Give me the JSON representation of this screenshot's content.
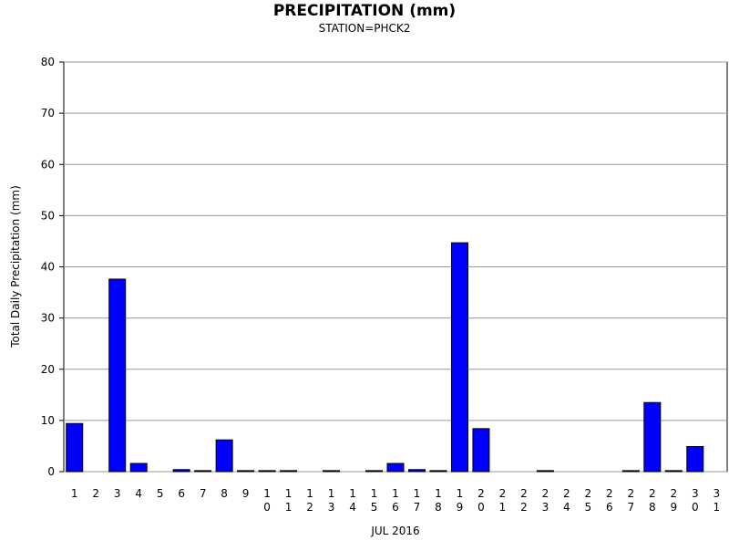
{
  "chart_data": {
    "type": "bar",
    "title": "PRECIPITATION (mm)",
    "subtitle": "STATION=PHCK2",
    "x_label": "JUL 2016",
    "y_label": "Total Daily Precipitation (mm)",
    "categories": [
      "1",
      "2",
      "3",
      "4",
      "5",
      "6",
      "7",
      "8",
      "9",
      "10",
      "11",
      "12",
      "13",
      "14",
      "15",
      "16",
      "17",
      "18",
      "19",
      "20",
      "21",
      "22",
      "23",
      "24",
      "25",
      "26",
      "27",
      "28",
      "29",
      "30",
      "31"
    ],
    "values": [
      9.4,
      0,
      37.6,
      1.6,
      0,
      0.4,
      0.2,
      6.2,
      0.2,
      0.2,
      0.2,
      0,
      0.2,
      0,
      0.2,
      1.6,
      0.4,
      0.2,
      44.7,
      8.4,
      0,
      0,
      0.2,
      0,
      0,
      0,
      0.2,
      13.5,
      0.2,
      4.9,
      0
    ],
    "color": "#0000ff",
    "ylim": [
      0,
      80
    ],
    "yticks": [
      0,
      10,
      20,
      30,
      40,
      50,
      60,
      70,
      80
    ],
    "grid": true
  }
}
